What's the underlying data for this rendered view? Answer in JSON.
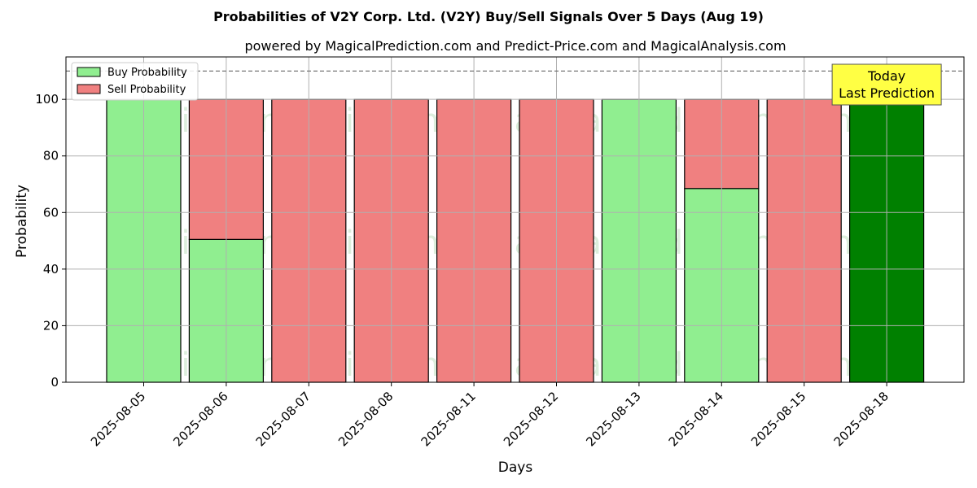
{
  "chart_data": {
    "type": "bar",
    "stacked": true,
    "title": "Probabilities of V2Y Corp. Ltd. (V2Y) Buy/Sell Signals Over 5 Days (Aug 19)",
    "subtitle": "powered by MagicalPrediction.com and Predict-Price.com and MagicalAnalysis.com",
    "xlabel": "Days",
    "ylabel": "Probability",
    "ylim": [
      0,
      115
    ],
    "yticks": [
      0,
      20,
      40,
      60,
      80,
      100
    ],
    "grid": true,
    "legend_position": "top-left",
    "reference_line": 110,
    "categories": [
      "2025-08-05",
      "2025-08-06",
      "2025-08-07",
      "2025-08-08",
      "2025-08-11",
      "2025-08-12",
      "2025-08-13",
      "2025-08-14",
      "2025-08-15",
      "2025-08-18"
    ],
    "series": [
      {
        "name": "Buy Probability",
        "values": [
          100,
          50.5,
          0,
          0,
          0,
          0,
          100,
          68.5,
          0,
          100
        ],
        "color": "#90ee90"
      },
      {
        "name": "Sell Probability",
        "values": [
          0,
          49.5,
          100,
          100,
          100,
          100,
          0,
          31.5,
          100,
          0
        ],
        "color": "#f08080"
      }
    ],
    "highlight": {
      "category": "2025-08-18",
      "color": "#008000",
      "label_line1": "Today",
      "label_line2": "Last Prediction",
      "label_color": "#ffff44"
    },
    "watermarks": [
      "MagicalAnalysis.com",
      "MagicalPrediction.com"
    ]
  }
}
